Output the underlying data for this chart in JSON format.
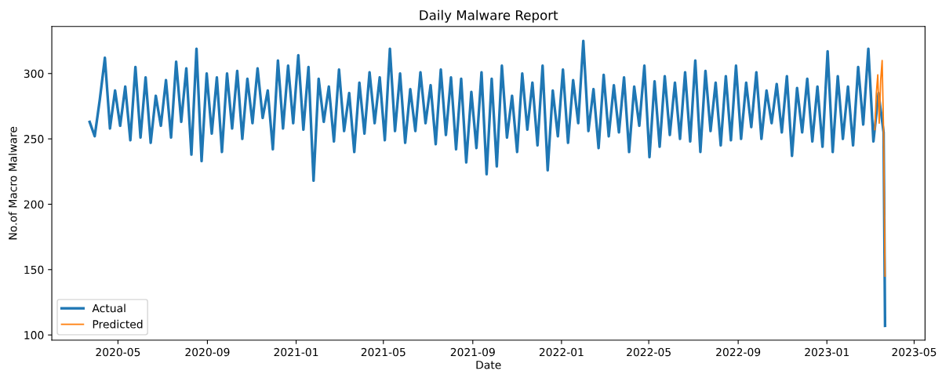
{
  "chart_data": {
    "type": "line",
    "title": "Daily Malware Report",
    "xlabel": "Date",
    "ylabel": "No.of Macro Malware",
    "x": [
      "2020-03-23",
      "2020-03-30",
      "2020-04-06",
      "2020-04-13",
      "2020-04-20",
      "2020-04-27",
      "2020-05-04",
      "2020-05-11",
      "2020-05-18",
      "2020-05-25",
      "2020-06-01",
      "2020-06-08",
      "2020-06-15",
      "2020-06-22",
      "2020-06-29",
      "2020-07-06",
      "2020-07-13",
      "2020-07-20",
      "2020-07-27",
      "2020-08-03",
      "2020-08-10",
      "2020-08-17",
      "2020-08-24",
      "2020-08-31",
      "2020-09-07",
      "2020-09-14",
      "2020-09-21",
      "2020-09-28",
      "2020-10-05",
      "2020-10-12",
      "2020-10-19",
      "2020-10-26",
      "2020-11-02",
      "2020-11-09",
      "2020-11-16",
      "2020-11-23",
      "2020-11-30",
      "2020-12-07",
      "2020-12-14",
      "2020-12-21",
      "2020-12-28",
      "2021-01-04",
      "2021-01-11",
      "2021-01-18",
      "2021-01-25",
      "2021-02-01",
      "2021-02-08",
      "2021-02-15",
      "2021-02-22",
      "2021-03-01",
      "2021-03-08",
      "2021-03-15",
      "2021-03-22",
      "2021-03-29",
      "2021-04-05",
      "2021-04-12",
      "2021-04-19",
      "2021-04-26",
      "2021-05-03",
      "2021-05-10",
      "2021-05-17",
      "2021-05-24",
      "2021-05-31",
      "2021-06-07",
      "2021-06-14",
      "2021-06-21",
      "2021-06-28",
      "2021-07-05",
      "2021-07-12",
      "2021-07-19",
      "2021-07-26",
      "2021-08-02",
      "2021-08-09",
      "2021-08-16",
      "2021-08-23",
      "2021-08-30",
      "2021-09-06",
      "2021-09-13",
      "2021-09-20",
      "2021-09-27",
      "2021-10-04",
      "2021-10-11",
      "2021-10-18",
      "2021-10-25",
      "2021-11-01",
      "2021-11-08",
      "2021-11-15",
      "2021-11-22",
      "2021-11-29",
      "2021-12-06",
      "2021-12-13",
      "2021-12-20",
      "2021-12-27",
      "2022-01-03",
      "2022-01-10",
      "2022-01-17",
      "2022-01-24",
      "2022-01-31",
      "2022-02-07",
      "2022-02-14",
      "2022-02-21",
      "2022-02-28",
      "2022-03-07",
      "2022-03-14",
      "2022-03-21",
      "2022-03-28",
      "2022-04-04",
      "2022-04-11",
      "2022-04-18",
      "2022-04-25",
      "2022-05-02",
      "2022-05-09",
      "2022-05-16",
      "2022-05-23",
      "2022-05-30",
      "2022-06-06",
      "2022-06-13",
      "2022-06-20",
      "2022-06-27",
      "2022-07-04",
      "2022-07-11",
      "2022-07-18",
      "2022-07-25",
      "2022-08-01",
      "2022-08-08",
      "2022-08-15",
      "2022-08-22",
      "2022-08-29",
      "2022-09-05",
      "2022-09-12",
      "2022-09-19",
      "2022-09-26",
      "2022-10-03",
      "2022-10-10",
      "2022-10-17",
      "2022-10-24",
      "2022-10-31",
      "2022-11-07",
      "2022-11-14",
      "2022-11-21",
      "2022-11-28",
      "2022-12-05",
      "2022-12-12",
      "2022-12-19",
      "2022-12-26",
      "2023-01-02",
      "2023-01-09",
      "2023-01-16",
      "2023-01-23",
      "2023-01-30",
      "2023-02-06",
      "2023-02-13",
      "2023-02-20",
      "2023-02-27",
      "2023-03-06",
      "2023-03-13",
      "2023-03-20",
      "2023-03-22"
    ],
    "series": [
      {
        "name": "Actual",
        "color": "#1f77b4",
        "values": [
          263,
          252,
          280,
          312,
          258,
          287,
          260,
          290,
          249,
          305,
          251,
          297,
          247,
          283,
          260,
          295,
          251,
          309,
          263,
          304,
          238,
          319,
          233,
          300,
          254,
          297,
          240,
          300,
          258,
          302,
          250,
          296,
          262,
          304,
          266,
          287,
          242,
          310,
          258,
          306,
          262,
          314,
          257,
          305,
          218,
          296,
          263,
          290,
          248,
          303,
          256,
          285,
          240,
          293,
          254,
          301,
          262,
          297,
          249,
          319,
          256,
          300,
          247,
          288,
          256,
          301,
          262,
          291,
          246,
          303,
          253,
          297,
          242,
          296,
          232,
          286,
          243,
          301,
          223,
          296,
          229,
          306,
          251,
          283,
          240,
          300,
          257,
          293,
          245,
          306,
          226,
          287,
          252,
          303,
          247,
          295,
          262,
          325,
          256,
          288,
          243,
          299,
          252,
          291,
          255,
          297,
          240,
          290,
          260,
          306,
          236,
          294,
          244,
          298,
          253,
          293,
          250,
          301,
          248,
          310,
          240,
          302,
          256,
          293,
          245,
          298,
          249,
          306,
          250,
          293,
          259,
          301,
          250,
          287,
          262,
          292,
          255,
          298,
          237,
          289,
          255,
          296,
          248,
          290,
          244,
          317,
          240,
          298,
          250,
          290,
          245,
          305,
          261,
          319,
          248,
          285,
          255,
          107
        ]
      },
      {
        "name": "Predicted",
        "color": "#ff7f0e",
        "x": [
          "2023-03-08",
          "2023-03-10",
          "2023-03-12",
          "2023-03-14",
          "2023-03-16",
          "2023-03-18",
          "2023-03-20",
          "2023-03-22"
        ],
        "values": [
          257,
          285,
          299,
          262,
          295,
          310,
          255,
          145
        ]
      }
    ],
    "xlim": [
      "2020-01-31",
      "2023-05-16"
    ],
    "xticks": [
      {
        "value": "2020-05-01",
        "label": "2020-05"
      },
      {
        "value": "2020-09-01",
        "label": "2020-09"
      },
      {
        "value": "2021-01-01",
        "label": "2021-01"
      },
      {
        "value": "2021-05-01",
        "label": "2021-05"
      },
      {
        "value": "2021-09-01",
        "label": "2021-09"
      },
      {
        "value": "2022-01-01",
        "label": "2022-01"
      },
      {
        "value": "2022-05-01",
        "label": "2022-05"
      },
      {
        "value": "2022-09-01",
        "label": "2022-09"
      },
      {
        "value": "2023-01-01",
        "label": "2023-01"
      },
      {
        "value": "2023-05-01",
        "label": "2023-05"
      }
    ],
    "ylim": [
      96,
      336
    ],
    "yticks": [
      100,
      150,
      200,
      250,
      300
    ],
    "grid": false,
    "legend": "lower left",
    "line_style": "solid"
  }
}
